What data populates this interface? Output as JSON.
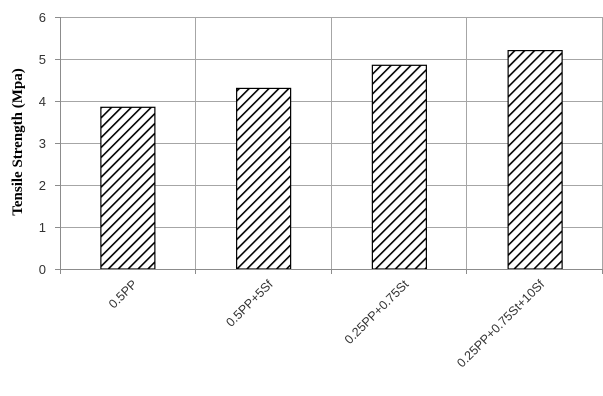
{
  "chart_data": {
    "type": "bar",
    "title": "",
    "xlabel": "",
    "ylabel": "Tensile Strength (Mpa)",
    "categories": [
      "0.5PP",
      "0.5PP+5Sf",
      "0.25PP+0.75St",
      "0.25PP+0.75St+10Sf"
    ],
    "values": [
      3.85,
      4.3,
      4.85,
      5.2
    ],
    "ylim": [
      0,
      6
    ],
    "yticks": [
      "0",
      "1",
      "2",
      "3",
      "4",
      "5",
      "6"
    ],
    "grid": true,
    "bar_fill": "diagonal-hatch",
    "colors": {
      "bar_edge": "#000000",
      "hatch": "#000000",
      "grid": "#a6a6a6",
      "axis": "#8c8c8c"
    }
  }
}
